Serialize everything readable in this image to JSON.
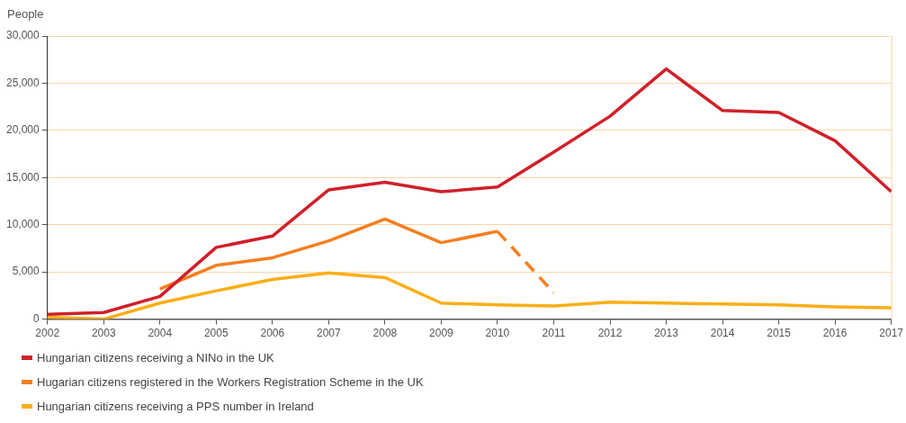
{
  "chart_data": {
    "type": "line",
    "ylabel": "People",
    "categories": [
      "2002",
      "2003",
      "2004",
      "2005",
      "2006",
      "2007",
      "2008",
      "2009",
      "2010",
      "2011",
      "2012",
      "2013",
      "2014",
      "2015",
      "2016",
      "2017"
    ],
    "series": [
      {
        "name": "Hungarian citizens receiving a NINo in the UK",
        "color": "#d0202a",
        "values": [
          500,
          700,
          2400,
          7600,
          8800,
          13700,
          14500,
          13500,
          14000,
          17700,
          21500,
          26500,
          22100,
          21900,
          18900,
          13500
        ]
      },
      {
        "name": "Hugarian citizens registered in the Workers Registration Scheme in the UK",
        "color": "#f47f20",
        "values": [
          null,
          null,
          3200,
          5700,
          6500,
          8300,
          10600,
          8100,
          9300,
          null,
          null,
          null,
          null,
          null,
          null,
          null
        ]
      },
      {
        "color": "#f47f20",
        "line_style": "dashed",
        "values": [
          null,
          null,
          null,
          null,
          null,
          null,
          null,
          null,
          9300,
          2800,
          null,
          null,
          null,
          null,
          null,
          null
        ]
      },
      {
        "name": "Hungarian citizens receiving a PPS number in Ireland",
        "color": "#fbae17",
        "values": [
          200,
          0,
          1700,
          3000,
          4200,
          4900,
          4400,
          1700,
          1500,
          1400,
          1800,
          1700,
          1600,
          1500,
          1300,
          1200
        ]
      }
    ],
    "ylim": [
      0,
      30000
    ],
    "yticks": [
      0,
      {
        "value": 5000,
        "label": "5,000"
      },
      {
        "value": 10000,
        "label": "10,000"
      },
      {
        "value": 15000,
        "label": "15,000"
      },
      {
        "value": 20000,
        "label": "20,000"
      },
      {
        "value": 25000,
        "label": "25,000"
      },
      {
        "value": 30000,
        "label": "30,000"
      }
    ],
    "grid": "y",
    "legend": "bottom",
    "marker": "none",
    "line_style": "solid"
  }
}
